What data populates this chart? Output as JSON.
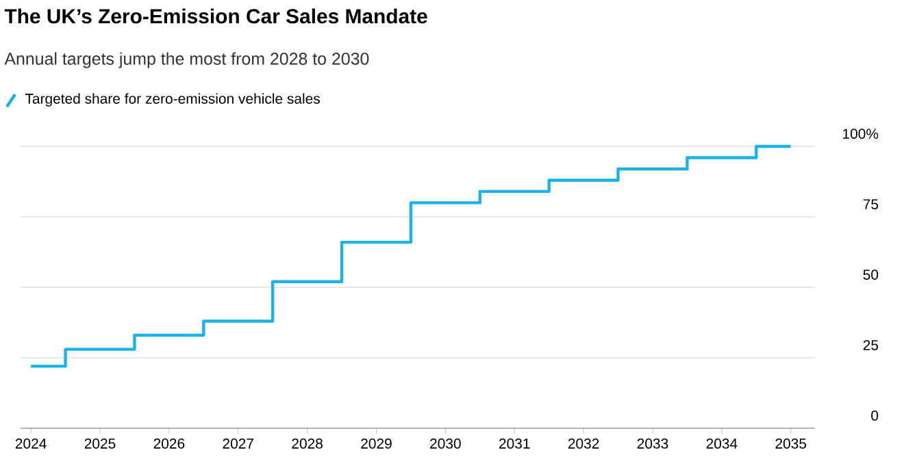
{
  "chart_data": {
    "type": "step",
    "title": "The UK’s Zero-Emission Car Sales Mandate",
    "subtitle": "Annual targets jump the most from 2028 to 2030",
    "x": [
      2024,
      2025,
      2026,
      2027,
      2028,
      2029,
      2030,
      2031,
      2032,
      2033,
      2034,
      2035
    ],
    "series": [
      {
        "name": "Targeted share for zero-emission vehicle sales",
        "color": "#1ab2e8",
        "values": [
          22,
          28,
          33,
          38,
          52,
          66,
          80,
          84,
          88,
          92,
          96,
          100
        ]
      }
    ],
    "xlim": [
      2023.85,
      2035.35
    ],
    "xticks": [
      2024,
      2025,
      2026,
      2027,
      2028,
      2029,
      2030,
      2031,
      2032,
      2033,
      2034,
      2035
    ],
    "ylim": [
      0,
      100
    ],
    "yticks": [
      0,
      25,
      50,
      75,
      {
        "value": 100,
        "label": "100%"
      }
    ],
    "grid": "y",
    "legend": "top left",
    "line_style": "solid",
    "marker": "none"
  }
}
